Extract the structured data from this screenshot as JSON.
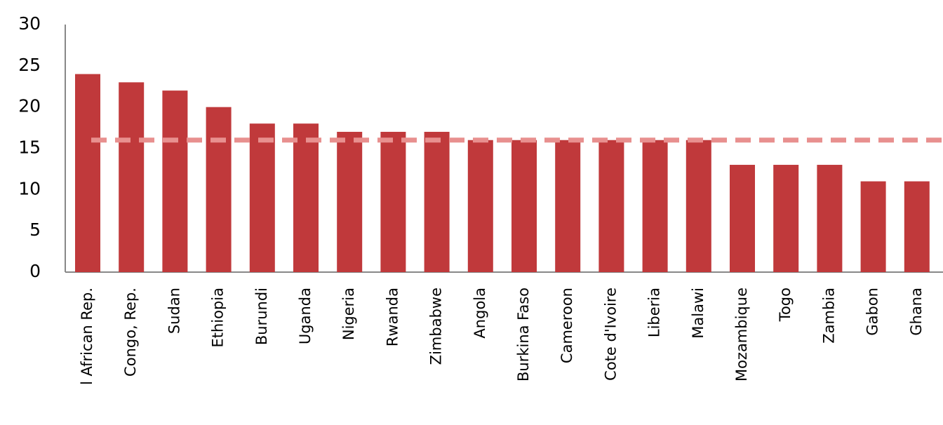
{
  "chart_data": {
    "type": "bar",
    "categories": [
      "l African Rep.",
      "Congo, Rep.",
      "Sudan",
      "Ethiopia",
      "Burundi",
      "Uganda",
      "Nigeria",
      "Rwanda",
      "Zimbabwe",
      "Angola",
      "Burkina Faso",
      "Cameroon",
      "Cote d'Ivoire",
      "Liberia",
      "Malawi",
      "Mozambique",
      "Togo",
      "Zambia",
      "Gabon",
      "Ghana"
    ],
    "values": [
      24,
      23,
      22,
      20,
      18,
      18,
      17,
      17,
      17,
      16,
      16,
      16,
      16,
      16,
      16,
      13,
      13,
      13,
      11,
      11
    ],
    "color": "#c0393b",
    "reference_line": 16,
    "reference_color": "#e8908f",
    "ylim": [
      0,
      30
    ],
    "yticks": [
      0,
      5,
      10,
      15,
      20,
      25,
      30
    ],
    "grid": false
  }
}
